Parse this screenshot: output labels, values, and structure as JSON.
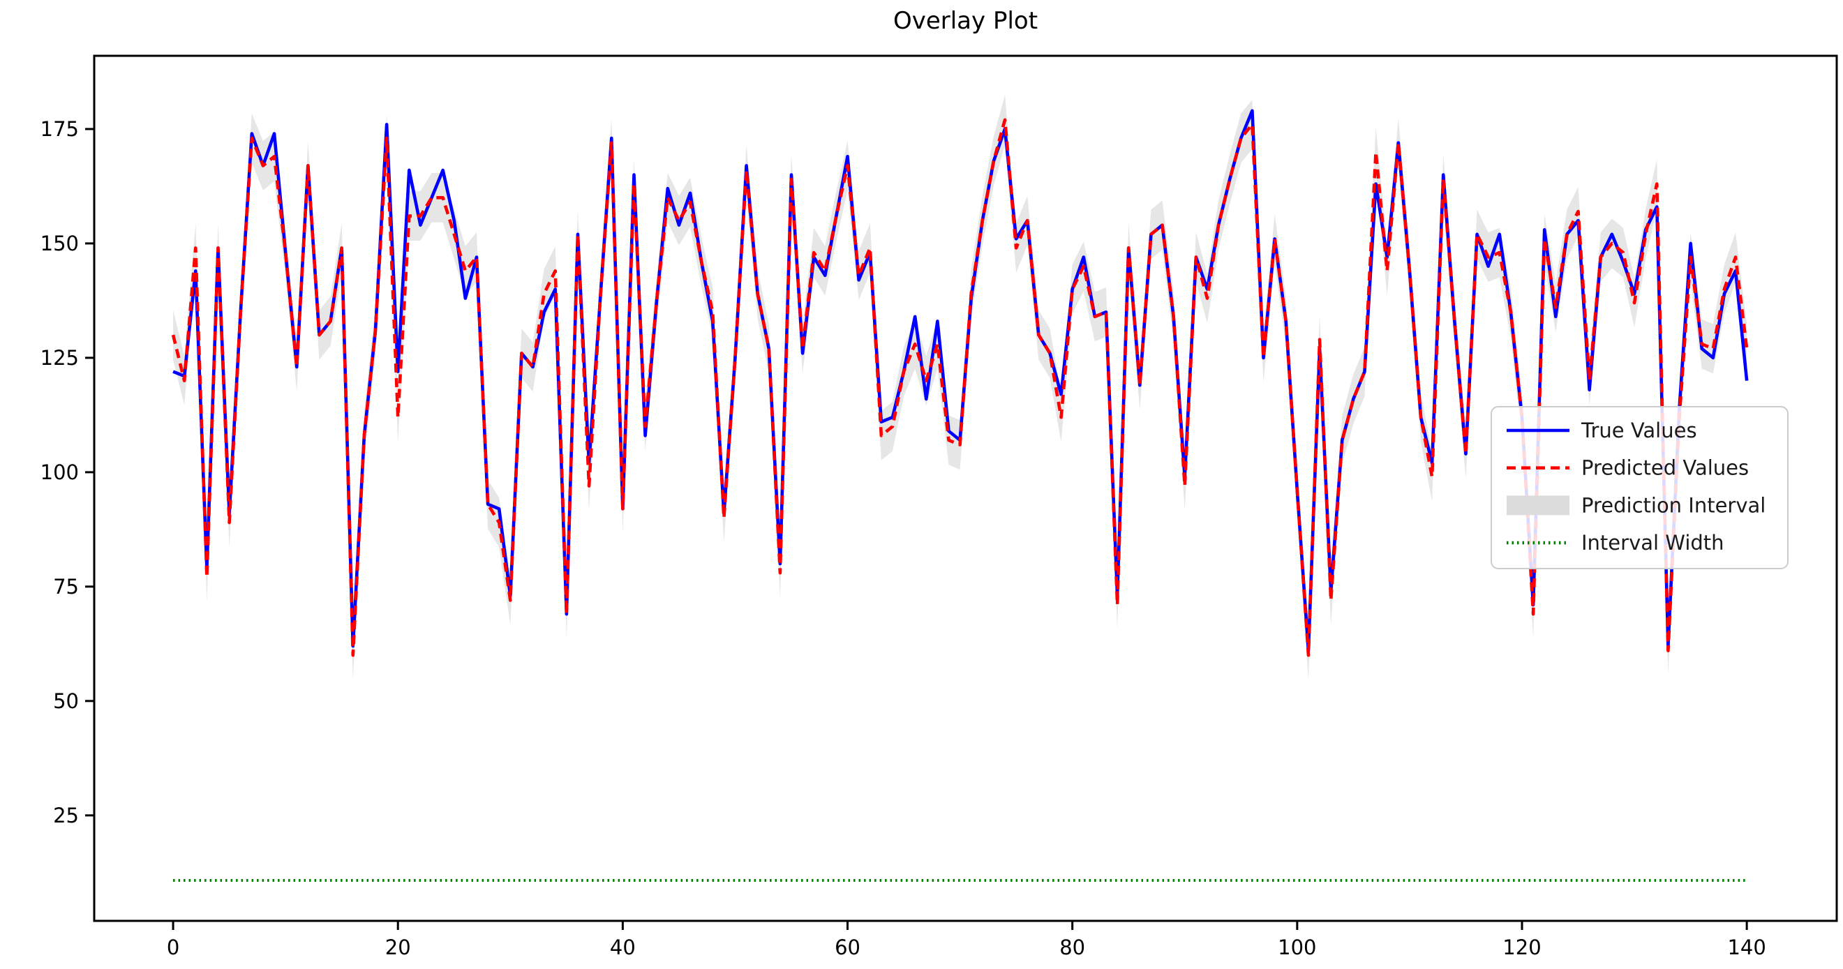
{
  "title": "Overlay Plot",
  "chart_data": {
    "type": "line",
    "title": "Overlay Plot",
    "xlabel": "",
    "ylabel": "",
    "grid": false,
    "legend_position": "center-right",
    "xticks": [
      0,
      20,
      40,
      60,
      80,
      100,
      120,
      140
    ],
    "yticks": [
      25,
      50,
      75,
      100,
      125,
      150,
      175
    ],
    "xlim": [
      -7.02,
      148.0
    ],
    "ylim": [
      1.95,
      191.0
    ],
    "x_start": 0,
    "x_step": 1,
    "colors": {
      "true_values": "#0000ff",
      "predicted_values": "#ff0000",
      "prediction_interval": "#dadada",
      "interval_width": "#008000",
      "axis": "#000000",
      "legend_border": "#cccccc"
    },
    "series": [
      {
        "name": "True Values",
        "style": "solid",
        "color": "#0000ff",
        "values": [
          122,
          121,
          144,
          79,
          149,
          91,
          135,
          174,
          167,
          174,
          148,
          123,
          167,
          130,
          133,
          149,
          62,
          108,
          131,
          176,
          122,
          166,
          154,
          160,
          166,
          155,
          138,
          147,
          93,
          92,
          73,
          126,
          123,
          135,
          140,
          69,
          152,
          102,
          138,
          173,
          92,
          165,
          108,
          137,
          162,
          154,
          161,
          146,
          133,
          91,
          125,
          167,
          139,
          127,
          80,
          165,
          126,
          147,
          143,
          156,
          169,
          142,
          148,
          111,
          112,
          122,
          134,
          116,
          133,
          109,
          107,
          138,
          155,
          168,
          175,
          151,
          155,
          130,
          126,
          117,
          140,
          147,
          134,
          135,
          73,
          149,
          119,
          152,
          154,
          134,
          99,
          147,
          140,
          154,
          164,
          173,
          179,
          125,
          151,
          133,
          96,
          61,
          127,
          74,
          107,
          116,
          122,
          163,
          147,
          172,
          144,
          112,
          102,
          165,
          133,
          104,
          152,
          145,
          152,
          135,
          112,
          71,
          153,
          134,
          152,
          155,
          118,
          147,
          152,
          146,
          139,
          153,
          158,
          62,
          114,
          150,
          127,
          125,
          139,
          144,
          120
        ]
      },
      {
        "name": "Predicted Values",
        "style": "dashed",
        "color": "#ff0000",
        "values": [
          130,
          120,
          149,
          77,
          149,
          89,
          135,
          173,
          167,
          169,
          148,
          123,
          167,
          130,
          133,
          149,
          60,
          108,
          131,
          173,
          112,
          156,
          156,
          160,
          160,
          152,
          144,
          147,
          93,
          89,
          72,
          126,
          123,
          139,
          144,
          69,
          152,
          97,
          138,
          172,
          92,
          163,
          110,
          137,
          160,
          155,
          159,
          146,
          135,
          90,
          125,
          166,
          139,
          127,
          78,
          164,
          127,
          148,
          144,
          156,
          167,
          143,
          149,
          108,
          110,
          122,
          128,
          120,
          128,
          107,
          106,
          139,
          155,
          168,
          177,
          149,
          155,
          130,
          126,
          112,
          140,
          145,
          134,
          135,
          71,
          149,
          119,
          152,
          154,
          134,
          97,
          147,
          138,
          154,
          164,
          173,
          176,
          125,
          151,
          133,
          96,
          60,
          129,
          72,
          107,
          116,
          122,
          170,
          144,
          172,
          144,
          112,
          99,
          164,
          133,
          104,
          152,
          147,
          148,
          135,
          112,
          69,
          151,
          136,
          152,
          157,
          120,
          147,
          150,
          148,
          137,
          152,
          163,
          61,
          112,
          147,
          128,
          127,
          140,
          147,
          127
        ]
      }
    ],
    "band": {
      "name": "Prediction Interval",
      "around": "Predicted Values",
      "half_width": 5.4,
      "color": "#b8b8b8",
      "opacity": 0.35
    },
    "constant_line": {
      "name": "Interval Width",
      "style": "dotted",
      "color": "#008000",
      "value": 10.8
    },
    "legend_labels": [
      "True Values",
      "Predicted Values",
      "Prediction Interval",
      "Interval Width"
    ]
  }
}
